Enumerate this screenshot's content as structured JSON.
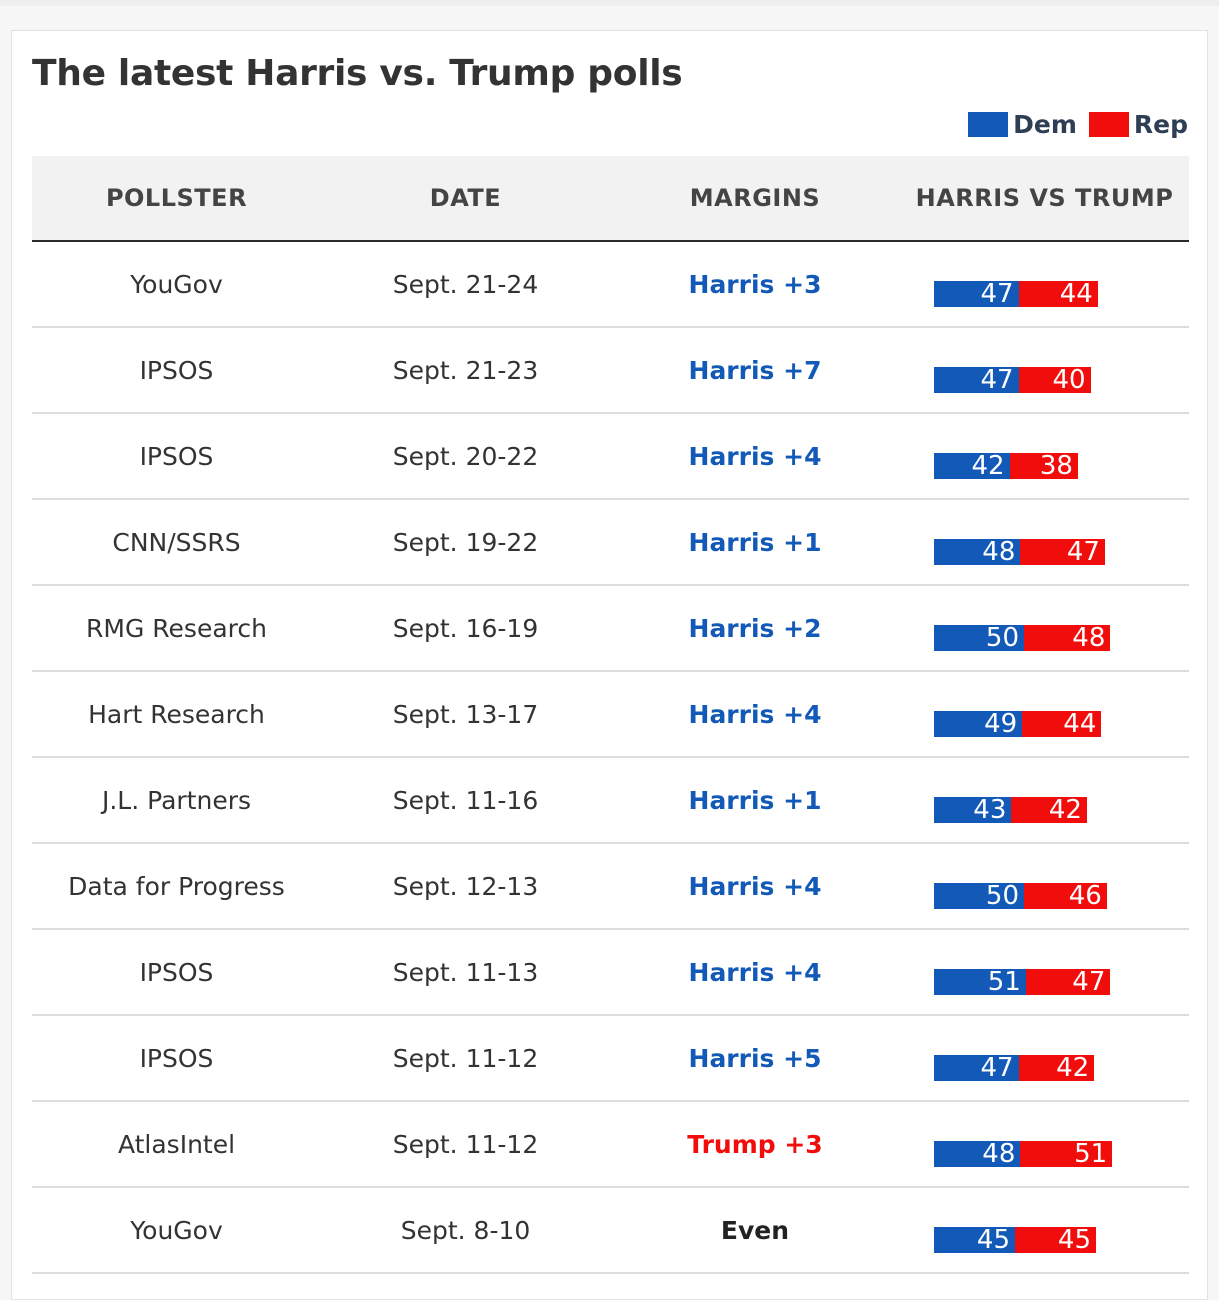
{
  "title": "The latest Harris vs. Trump polls",
  "legend": {
    "dem": "Dem",
    "rep": "Rep"
  },
  "colors": {
    "dem": "#1259b8",
    "rep": "#f20d0d",
    "even": "#222222"
  },
  "chart_data": {
    "type": "table",
    "columns": [
      "POLLSTER",
      "DATE",
      "MARGINS",
      "HARRIS VS TRUMP"
    ],
    "rows": [
      {
        "pollster": "YouGov",
        "date": "Sept. 21-24",
        "margin": "Harris +3",
        "leader": "dem",
        "harris": 47,
        "trump": 44
      },
      {
        "pollster": "IPSOS",
        "date": "Sept. 21-23",
        "margin": "Harris +7",
        "leader": "dem",
        "harris": 47,
        "trump": 40
      },
      {
        "pollster": "IPSOS",
        "date": "Sept. 20-22",
        "margin": "Harris +4",
        "leader": "dem",
        "harris": 42,
        "trump": 38
      },
      {
        "pollster": "CNN/SSRS",
        "date": "Sept. 19-22",
        "margin": "Harris +1",
        "leader": "dem",
        "harris": 48,
        "trump": 47
      },
      {
        "pollster": "RMG Research",
        "date": "Sept. 16-19",
        "margin": "Harris +2",
        "leader": "dem",
        "harris": 50,
        "trump": 48
      },
      {
        "pollster": "Hart Research",
        "date": "Sept. 13-17",
        "margin": "Harris +4",
        "leader": "dem",
        "harris": 49,
        "trump": 44
      },
      {
        "pollster": "J.L. Partners",
        "date": "Sept. 11-16",
        "margin": "Harris +1",
        "leader": "dem",
        "harris": 43,
        "trump": 42
      },
      {
        "pollster": "Data for Progress",
        "date": "Sept. 12-13",
        "margin": "Harris +4",
        "leader": "dem",
        "harris": 50,
        "trump": 46
      },
      {
        "pollster": "IPSOS",
        "date": "Sept. 11-13",
        "margin": "Harris +4",
        "leader": "dem",
        "harris": 51,
        "trump": 47
      },
      {
        "pollster": "IPSOS",
        "date": "Sept. 11-12",
        "margin": "Harris +5",
        "leader": "dem",
        "harris": 47,
        "trump": 42
      },
      {
        "pollster": "AtlasIntel",
        "date": "Sept. 11-12",
        "margin": "Trump +3",
        "leader": "rep",
        "harris": 48,
        "trump": 51
      },
      {
        "pollster": "YouGov",
        "date": "Sept. 8-10",
        "margin": "Even",
        "leader": "even",
        "harris": 45,
        "trump": 45
      }
    ]
  }
}
